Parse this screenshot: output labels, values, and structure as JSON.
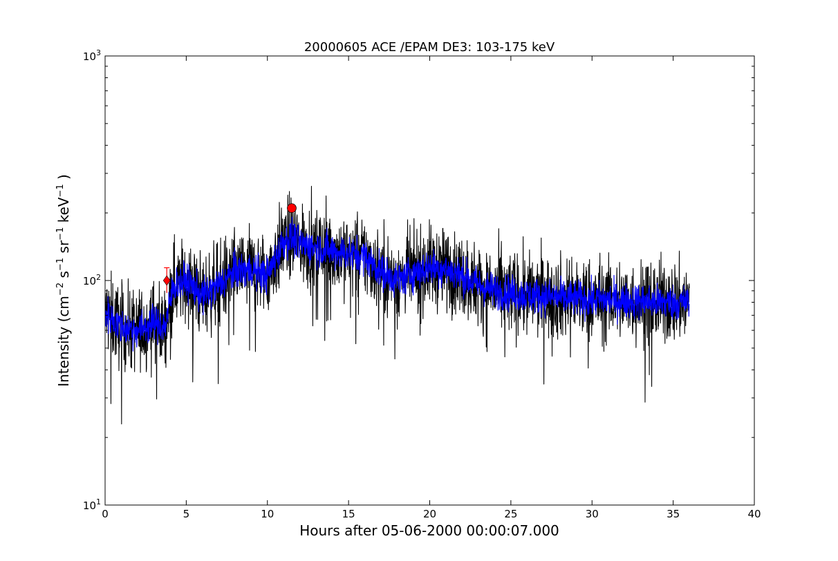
{
  "chart_data": {
    "type": "line",
    "title": "20000605 ACE /EPAM DE3: 103-175 keV",
    "xlabel": "Hours after 05-06-2000 00:00:07.000",
    "ylabel": {
      "prefix": "Intensity (cm",
      "parts": [
        {
          "base": "cm",
          "exp": "−2"
        },
        {
          "base": "s",
          "exp": "−1"
        },
        {
          "base": "sr",
          "exp": "−1"
        },
        {
          "base": "keV",
          "exp": "−1"
        }
      ],
      "suffix": ")"
    },
    "xlim": [
      0,
      40
    ],
    "ylim": [
      10,
      1000
    ],
    "yscale": "log",
    "xticks": [
      0,
      5,
      10,
      15,
      20,
      25,
      30,
      35,
      40
    ],
    "xtick_labels": [
      "0",
      "5",
      "10",
      "15",
      "20",
      "25",
      "30",
      "35",
      "40"
    ],
    "yticks": [
      10,
      100,
      1000
    ],
    "ytick_labels": [
      {
        "base": "10",
        "exp": "1"
      },
      {
        "base": "10",
        "exp": "2"
      },
      {
        "base": "10",
        "exp": "3"
      }
    ],
    "grid": false,
    "legend": "none",
    "series": [
      {
        "role": "raw",
        "color": "#000000",
        "x": [
          0,
          1,
          2,
          3,
          3.7,
          4.2,
          5,
          6,
          7,
          8,
          9,
          10,
          11,
          11.5,
          12,
          13,
          14,
          15,
          16,
          17,
          18,
          19,
          20,
          21,
          22,
          23,
          24,
          25,
          26,
          27,
          28,
          29,
          30,
          31,
          32,
          33,
          34,
          35,
          36
        ],
        "y": [
          72,
          62,
          60,
          65,
          62,
          95,
          100,
          85,
          95,
          110,
          112,
          105,
          150,
          155,
          145,
          140,
          135,
          132,
          128,
          110,
          100,
          108,
          115,
          112,
          105,
          95,
          90,
          88,
          86,
          85,
          84,
          83,
          82,
          82,
          81,
          81,
          80,
          80,
          80
        ],
        "spread": 0.42
      },
      {
        "role": "smoothed",
        "color": "#0000ff",
        "x": [
          0,
          1,
          2,
          3,
          3.7,
          4.2,
          5,
          6,
          7,
          8,
          9,
          10,
          11,
          11.5,
          12,
          13,
          14,
          15,
          16,
          17,
          18,
          19,
          20,
          21,
          22,
          23,
          24,
          25,
          26,
          27,
          28,
          29,
          30,
          31,
          32,
          33,
          34,
          35,
          36
        ],
        "y": [
          72,
          62,
          60,
          65,
          62,
          95,
          100,
          85,
          95,
          110,
          112,
          105,
          150,
          155,
          145,
          140,
          135,
          132,
          128,
          110,
          100,
          108,
          115,
          112,
          105,
          95,
          90,
          88,
          86,
          85,
          84,
          83,
          82,
          82,
          81,
          81,
          80,
          80,
          80
        ],
        "spread": 0.18
      }
    ],
    "markers": [
      {
        "shape": "diamond",
        "x": 3.8,
        "y": 100,
        "color": "#ff0000"
      },
      {
        "shape": "circle",
        "x": 11.5,
        "y": 210,
        "color": "#ff0000"
      }
    ],
    "error_bar": {
      "x": 3.8,
      "y_low": 88,
      "y_high": 114,
      "color": "#ff0000"
    }
  }
}
